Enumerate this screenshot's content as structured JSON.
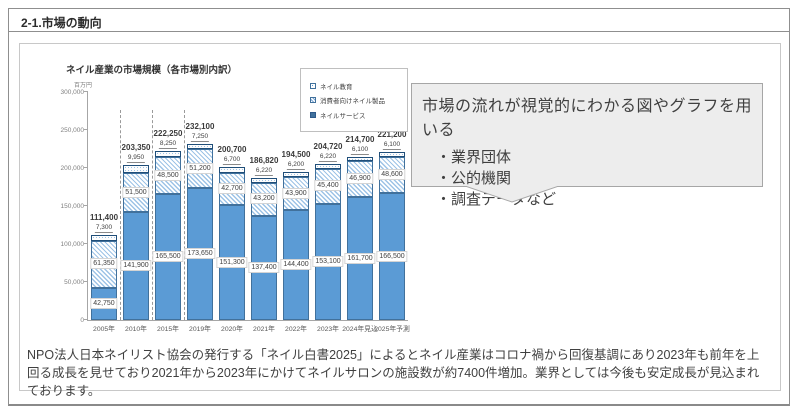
{
  "page": {
    "header": "2-1.市場の動向"
  },
  "chart": {
    "title": "ネイル産業の市場規模（各市場別内訳）",
    "unit_label": "百万円",
    "legend": [
      {
        "label": "ネイル教育",
        "style": "dots"
      },
      {
        "label": "消費者向けネイル製品",
        "style": "hatch"
      },
      {
        "label": "ネイルサービス",
        "style": "solid"
      }
    ]
  },
  "chart_data": {
    "type": "bar",
    "stacked": true,
    "title": "ネイル産業の市場規模（各市場別内訳）",
    "ylabel": "百万円",
    "ylim": [
      0,
      300000
    ],
    "y_tick_step": 50000,
    "categories": [
      "2005年",
      "2010年",
      "2015年",
      "2019年",
      "2020年",
      "2021年",
      "2022年",
      "2023年",
      "2024年見込",
      "2025年予測"
    ],
    "series": [
      {
        "name": "ネイルサービス",
        "style": "solid",
        "values": [
          42750,
          141900,
          165500,
          173650,
          151300,
          137400,
          144400,
          153100,
          161700,
          166500
        ]
      },
      {
        "name": "消費者向けネイル製品",
        "style": "hatch",
        "values": [
          61350,
          51500,
          48500,
          51200,
          42700,
          43200,
          43900,
          45400,
          46900,
          48600
        ]
      },
      {
        "name": "ネイル教育",
        "style": "dots",
        "values": [
          7300,
          9950,
          8250,
          7250,
          6700,
          6220,
          6200,
          6220,
          6100,
          6100
        ]
      }
    ],
    "totals": [
      111400,
      203350,
      222250,
      232100,
      200700,
      186820,
      194500,
      204720,
      214700,
      221200
    ],
    "separators_after": [
      0,
      1,
      2
    ],
    "legend_position": "top-right",
    "grid": false
  },
  "callout": {
    "title": "市場の流れが視覚的にわかる図やグラフを用いる",
    "bullets": [
      "・業界団体",
      "・公的機関",
      "・調査データなど"
    ]
  },
  "body_text": "NPO法人日本ネイリスト協会の発行する「ネイル白書2025」によるとネイル産業はコロナ禍から回復基調にあり2023年も前年を上回る成長を見せており2021年から2023年にかけてネイルサロンの施設数が約7400件増加。業界としては今後も安定成長が見込まれております。",
  "colors": {
    "bar_solid": "#5b9bd5",
    "bar_border": "#41719c",
    "hatch_line": "#9dc3e6",
    "callout_bg": "#ededed",
    "callout_border": "#a6a6a6",
    "text_dark": "#404040",
    "axis_gray": "#808080"
  }
}
